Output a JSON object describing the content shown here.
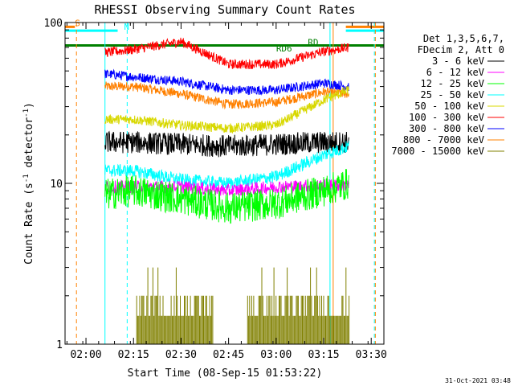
{
  "chart_data": {
    "type": "line",
    "title": "RHESSI Observing Summary Count Rates",
    "xlabel": "Start Time (08-Sep-15 01:53:22)",
    "ylabel": "Count Rate (s⁻¹ detector⁻¹)",
    "ylabel_parts": {
      "main": "Count Rate (s",
      "sup1": "-1",
      "mid": " detector",
      "sup2": "-1",
      "end": ")"
    },
    "y_scale": "log",
    "ylim": [
      1,
      100
    ],
    "xlim_minutes": [
      113.4,
      214
    ],
    "x_ticks": [
      {
        "label": "02:00",
        "minute": 120
      },
      {
        "label": "02:15",
        "minute": 135
      },
      {
        "label": "02:30",
        "minute": 150
      },
      {
        "label": "02:45",
        "minute": 165
      },
      {
        "label": "03:00",
        "minute": 180
      },
      {
        "label": "03:15",
        "minute": 195
      },
      {
        "label": "03:30",
        "minute": 210
      }
    ],
    "y_ticks": [
      {
        "label": "1",
        "value": 1
      },
      {
        "label": "10",
        "value": 10
      },
      {
        "label": "100",
        "value": 100
      }
    ],
    "legend": {
      "placement": "right",
      "header": [
        "Det 1,3,5,6,7,",
        "FDecim 2, Att 0"
      ]
    },
    "data_window_minutes": [
      126,
      203
    ],
    "series": [
      {
        "name": "3 - 6 keV",
        "color": "#000000",
        "profile": [
          [
            126,
            18
          ],
          [
            135,
            18
          ],
          [
            150,
            17.5
          ],
          [
            165,
            17
          ],
          [
            180,
            17.5
          ],
          [
            195,
            18
          ],
          [
            203,
            18
          ]
        ],
        "noise": 0.07
      },
      {
        "name": "6 - 12 keV",
        "color": "#ff00ff",
        "profile": [
          [
            126,
            9.5
          ],
          [
            135,
            9.5
          ],
          [
            150,
            9.5
          ],
          [
            165,
            9
          ],
          [
            180,
            9.5
          ],
          [
            195,
            9.7
          ],
          [
            203,
            9.7
          ]
        ],
        "noise": 0.04
      },
      {
        "name": "12 - 25 keV",
        "color": "#00ff00",
        "profile": [
          [
            126,
            8.5
          ],
          [
            135,
            9
          ],
          [
            150,
            8
          ],
          [
            165,
            7
          ],
          [
            180,
            7.5
          ],
          [
            195,
            9
          ],
          [
            203,
            10
          ]
        ],
        "noise": 0.1
      },
      {
        "name": "25 - 50 keV",
        "color": "#00ffff",
        "profile": [
          [
            126,
            12
          ],
          [
            135,
            12
          ],
          [
            150,
            10.5
          ],
          [
            165,
            10
          ],
          [
            180,
            11
          ],
          [
            195,
            15
          ],
          [
            203,
            17
          ]
        ],
        "noise": 0.04
      },
      {
        "name": "50 - 100 keV",
        "color": "#d8d800",
        "profile": [
          [
            126,
            25
          ],
          [
            135,
            25
          ],
          [
            150,
            23
          ],
          [
            165,
            22
          ],
          [
            180,
            23
          ],
          [
            195,
            33
          ],
          [
            203,
            38
          ]
        ],
        "noise": 0.03
      },
      {
        "name": "100 - 300 keV",
        "color": "#ff0000",
        "profile": [
          [
            126,
            65
          ],
          [
            135,
            68
          ],
          [
            150,
            76
          ],
          [
            165,
            55
          ],
          [
            180,
            55
          ],
          [
            195,
            66
          ],
          [
            203,
            70
          ]
        ],
        "noise": 0.03
      },
      {
        "name": "300 - 800 keV",
        "color": "#0000ff",
        "profile": [
          [
            126,
            48
          ],
          [
            135,
            46
          ],
          [
            150,
            43
          ],
          [
            165,
            38
          ],
          [
            180,
            38
          ],
          [
            195,
            42
          ],
          [
            203,
            40
          ]
        ],
        "noise": 0.03
      },
      {
        "name": "800 - 7000 keV",
        "color": "#ff8000",
        "profile": [
          [
            126,
            40
          ],
          [
            135,
            40
          ],
          [
            150,
            36
          ],
          [
            165,
            31
          ],
          [
            180,
            32
          ],
          [
            195,
            37
          ],
          [
            203,
            36
          ]
        ],
        "noise": 0.03
      },
      {
        "name": "7000 - 15000 keV",
        "color": "#808000",
        "profile": [
          [
            136,
            1.5
          ],
          [
            148,
            1.5
          ],
          [
            170,
            1.5
          ],
          [
            184,
            1.5
          ],
          [
            200,
            1.5
          ]
        ],
        "noise": 0
      }
    ],
    "annotations": [
      {
        "text": "S",
        "x_minute": 116.5,
        "y_value": 95,
        "color": "#ff8000"
      },
      {
        "text": "N",
        "x_minute": 132,
        "y_value": 90,
        "color": "#00ffff"
      },
      {
        "text": "RD6",
        "x_minute": 180,
        "y_value": 66,
        "color": "#008000"
      },
      {
        "text": "RD",
        "x_minute": 190,
        "y_value": 72,
        "color": "#008000"
      }
    ],
    "flag_lines": [
      {
        "color": "#008000",
        "y_value": 72,
        "x_from": 113.4,
        "x_to": 214
      },
      {
        "color": "#00ffff",
        "y_value": 89,
        "x_from": 113.4,
        "x_to": 130
      },
      {
        "color": "#00ffff",
        "y_value": 89,
        "x_from": 202,
        "x_to": 214
      },
      {
        "color": "#ff8000",
        "y_value": 94,
        "x_from": 113.4,
        "x_to": 116.5
      },
      {
        "color": "#ff8000",
        "y_value": 94,
        "x_from": 202,
        "x_to": 214
      }
    ],
    "event_lines": [
      {
        "color": "#ff8000",
        "x_minute": 117,
        "dashed": true
      },
      {
        "color": "#00ffff",
        "x_minute": 126,
        "dashed": false
      },
      {
        "color": "#00ffff",
        "x_minute": 133,
        "dashed": true
      },
      {
        "color": "#00ffff",
        "x_minute": 197,
        "dashed": false
      },
      {
        "color": "#ff8000",
        "x_minute": 198,
        "dashed": false
      },
      {
        "color": "#00ffff",
        "x_minute": 211,
        "dashed": true
      },
      {
        "color": "#ff8000",
        "x_minute": 211.3,
        "dashed": true
      }
    ]
  },
  "footer_timestamp": "31-Oct-2021 03:48"
}
